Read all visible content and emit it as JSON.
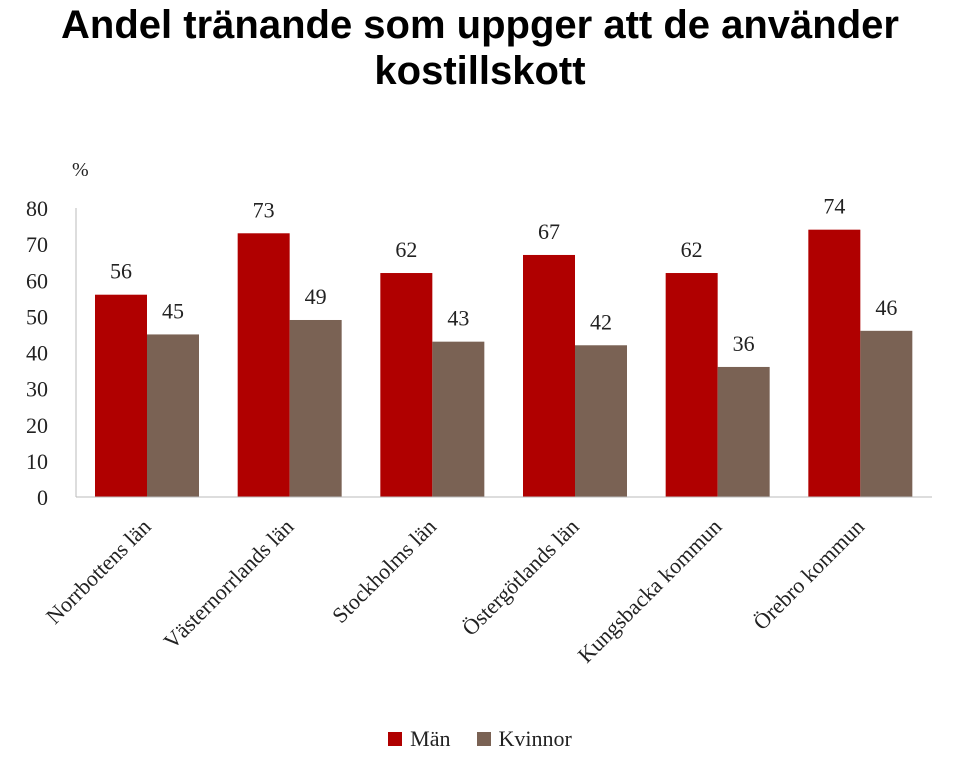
{
  "title_line1": "Andel tränande som uppger att de använder",
  "title_line2": "kostillskott",
  "chart_data": {
    "type": "bar",
    "title": "Andel tränande som uppger att de använder kostillskott",
    "ylabel": "%",
    "xlabel": "",
    "ylim": [
      0,
      80
    ],
    "yticks": [
      0,
      10,
      20,
      30,
      40,
      50,
      60,
      70,
      80
    ],
    "grid": false,
    "legend_position": "bottom",
    "categories": [
      "Norrbottens län",
      "Västernorrlands län",
      "Stockholms län",
      "Östergötlands län",
      "Kungsbacka kommun",
      "Örebro kommun"
    ],
    "series": [
      {
        "name": "Män",
        "values": [
          56,
          73,
          62,
          67,
          62,
          74
        ],
        "color": "#b00000"
      },
      {
        "name": "Kvinnor",
        "values": [
          45,
          49,
          43,
          42,
          36,
          46
        ],
        "color": "#7a6254"
      }
    ]
  }
}
